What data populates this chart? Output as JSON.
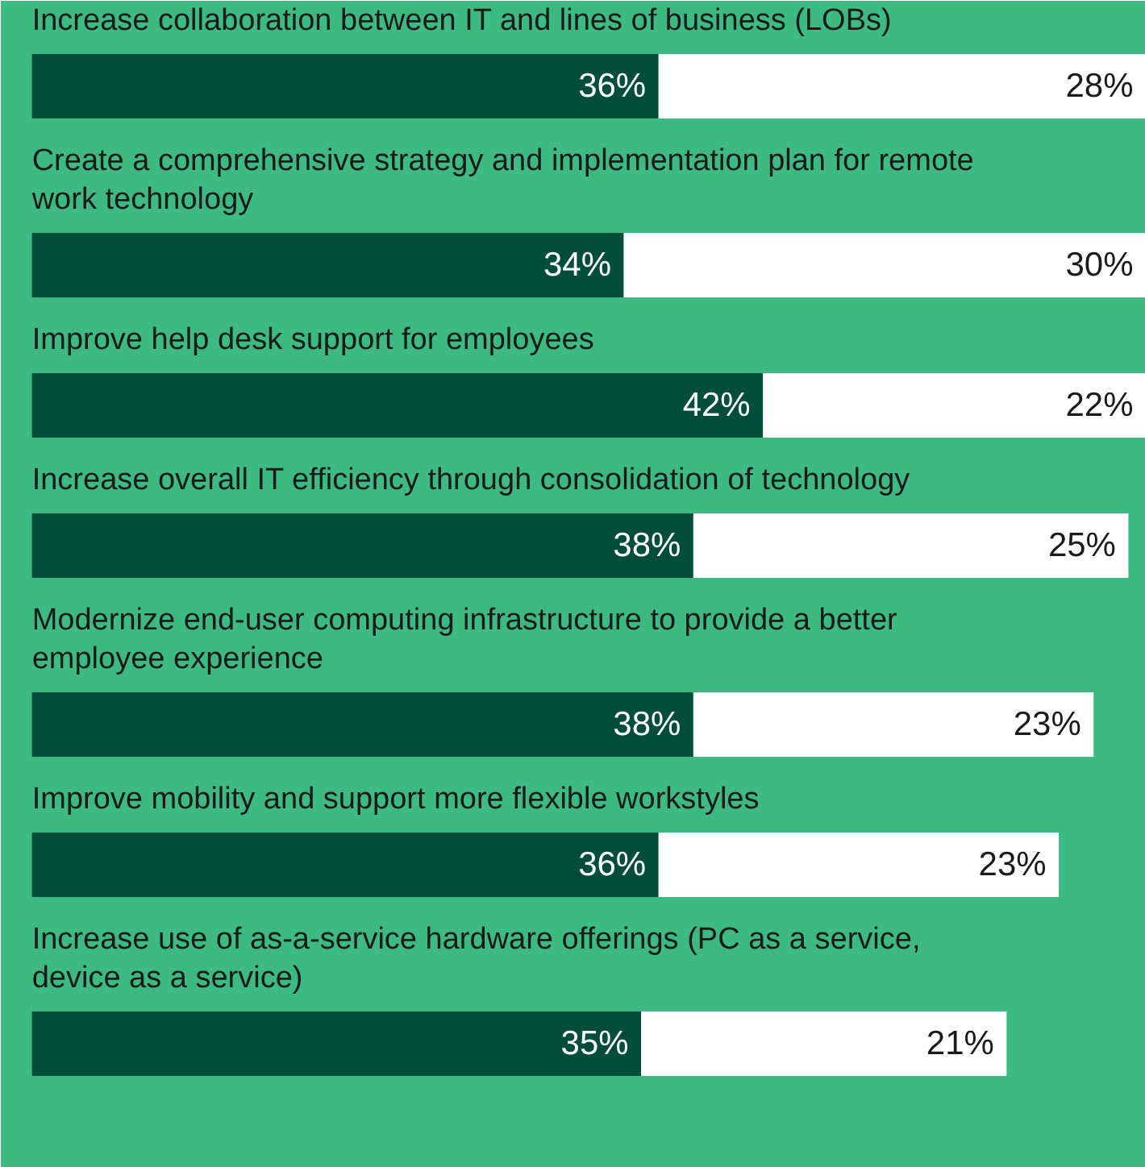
{
  "chart_data": {
    "type": "bar",
    "orientation": "horizontal",
    "stacked": true,
    "categories": [
      "Increase collaboration between IT and lines of business (LOBs)",
      "Create a comprehensive strategy and implementation plan for remote work technology",
      "Improve help desk support for employees",
      "Increase overall IT efficiency through consolidation of technology",
      "Modernize end-user computing infrastructure to provide a better employee experience",
      "Improve mobility and support more flexible workstyles",
      "Increase use of as-a-service hardware offerings (PC as a service, device as a service)"
    ],
    "series": [
      {
        "color": "#004d3a",
        "values": [
          36,
          34,
          42,
          38,
          38,
          36,
          35
        ],
        "value_labels": [
          "36%",
          "34%",
          "42%",
          "38%",
          "38%",
          "36%",
          "35%"
        ]
      },
      {
        "color": "#ffffff",
        "values": [
          28,
          30,
          22,
          25,
          23,
          23,
          21
        ],
        "value_labels": [
          "28%",
          "30%",
          "22%",
          "25%",
          "23%",
          "23%",
          "21%"
        ]
      }
    ]
  }
}
